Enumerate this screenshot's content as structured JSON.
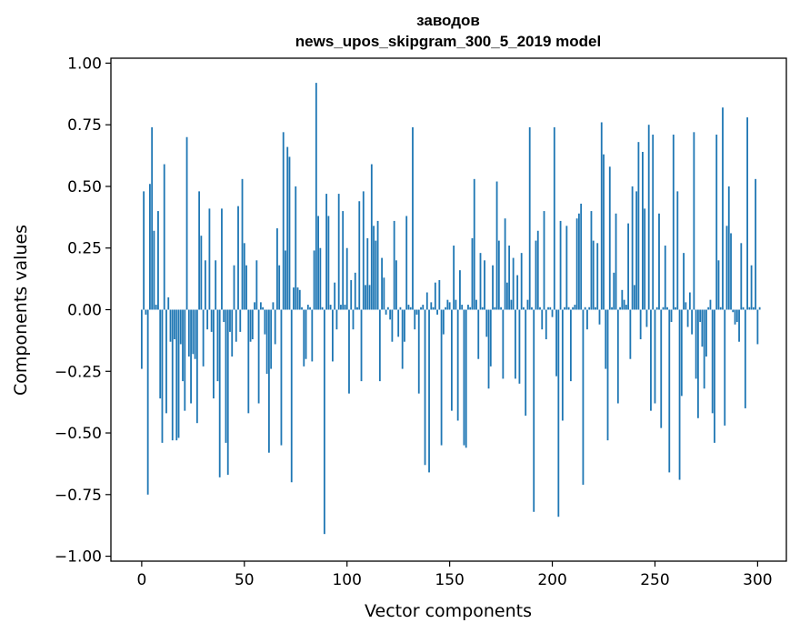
{
  "chart_data": {
    "type": "bar",
    "title_line1": "заводов",
    "title_line2": "news_upos_skipgram_300_5_2019 model",
    "xlabel": "Vector components",
    "ylabel": "Components values",
    "xlim": [
      -15,
      314
    ],
    "ylim": [
      -1.02,
      1.02
    ],
    "xticks": [
      0,
      50,
      100,
      150,
      200,
      250,
      300
    ],
    "xtick_labels": [
      "0",
      "50",
      "100",
      "150",
      "200",
      "250",
      "300"
    ],
    "yticks": [
      1.0,
      0.75,
      0.5,
      0.25,
      0.0,
      -0.25,
      -0.5,
      -0.75,
      -1.0
    ],
    "ytick_labels": [
      "1.00",
      "0.75",
      "0.50",
      "0.25",
      "0.00",
      "−0.25",
      "−0.50",
      "−0.75",
      "−1.00"
    ],
    "color": "#1f77b4",
    "values": [
      -0.24,
      0.48,
      -0.02,
      -0.75,
      0.51,
      0.74,
      0.32,
      0.02,
      0.4,
      -0.36,
      -0.54,
      0.59,
      -0.42,
      0.05,
      -0.13,
      -0.53,
      -0.12,
      -0.53,
      -0.52,
      -0.14,
      -0.29,
      -0.41,
      0.7,
      -0.19,
      -0.38,
      -0.18,
      -0.2,
      -0.46,
      0.48,
      0.3,
      -0.23,
      0.2,
      -0.08,
      0.41,
      -0.09,
      -0.36,
      0.2,
      -0.29,
      -0.68,
      0.41,
      -0.05,
      -0.54,
      -0.67,
      -0.09,
      -0.19,
      0.18,
      -0.13,
      0.42,
      -0.09,
      0.53,
      0.27,
      0.18,
      -0.42,
      -0.13,
      -0.12,
      0.03,
      0.2,
      -0.38,
      0.03,
      0.01,
      -0.1,
      -0.26,
      -0.58,
      -0.24,
      0.03,
      -0.14,
      0.33,
      0.18,
      -0.55,
      0.72,
      0.24,
      0.66,
      0.62,
      -0.7,
      0.09,
      0.5,
      0.09,
      0.08,
      0.01,
      -0.23,
      -0.2,
      0.02,
      0.01,
      -0.21,
      0.24,
      0.92,
      0.38,
      0.25,
      0.01,
      -0.91,
      0.47,
      0.38,
      0.02,
      -0.21,
      0.11,
      -0.08,
      0.47,
      0.02,
      0.4,
      0.02,
      0.25,
      -0.34,
      0.12,
      -0.08,
      0.15,
      0.01,
      0.44,
      -0.29,
      0.48,
      0.1,
      0.29,
      0.1,
      0.59,
      0.34,
      0.28,
      0.36,
      -0.29,
      0.21,
      0.13,
      -0.02,
      0.01,
      -0.04,
      -0.13,
      0.36,
      0.2,
      -0.11,
      0.01,
      -0.24,
      -0.13,
      0.38,
      0.02,
      0.01,
      0.74,
      -0.08,
      -0.02,
      -0.34,
      0.01,
      0.02,
      -0.63,
      0.07,
      -0.66,
      0.03,
      0.01,
      0.11,
      -0.02,
      0.12,
      -0.55,
      -0.1,
      0.01,
      0.04,
      0.03,
      -0.41,
      0.26,
      0.04,
      -0.45,
      0.16,
      0.02,
      -0.55,
      -0.56,
      0.02,
      0.01,
      0.29,
      0.53,
      0.04,
      -0.2,
      0.23,
      0.01,
      0.2,
      -0.11,
      -0.32,
      -0.23,
      0.18,
      0.01,
      0.52,
      0.28,
      0.01,
      -0.28,
      0.37,
      0.11,
      0.26,
      0.04,
      0.21,
      -0.28,
      0.14,
      -0.3,
      0.23,
      0.01,
      -0.43,
      0.04,
      0.74,
      0.01,
      -0.82,
      0.28,
      0.32,
      0.01,
      -0.08,
      0.4,
      -0.12,
      0.01,
      0.01,
      -0.03,
      0.74,
      -0.27,
      -0.84,
      0.36,
      -0.45,
      0.01,
      0.34,
      0.01,
      -0.29,
      0.01,
      0.02,
      0.37,
      0.39,
      0.43,
      -0.71,
      0.01,
      -0.08,
      0.01,
      0.4,
      0.28,
      0.01,
      0.27,
      -0.06,
      0.76,
      0.63,
      -0.24,
      -0.53,
      0.58,
      0.01,
      0.15,
      0.39,
      -0.38,
      0.01,
      0.08,
      0.04,
      0.02,
      0.35,
      -0.2,
      0.5,
      0.1,
      0.48,
      0.68,
      -0.12,
      0.64,
      0.41,
      -0.07,
      0.75,
      -0.41,
      0.71,
      -0.38,
      0.01,
      0.39,
      -0.48,
      0.01,
      0.26,
      0.01,
      -0.66,
      -0.05,
      0.71,
      0.01,
      0.48,
      -0.69,
      -0.35,
      0.23,
      0.03,
      -0.07,
      0.07,
      -0.1,
      0.72,
      -0.28,
      -0.44,
      -0.05,
      -0.15,
      -0.32,
      -0.19,
      0.01,
      0.04,
      -0.42,
      -0.54,
      0.71,
      0.2,
      0.01,
      0.82,
      -0.47,
      0.34,
      0.5,
      0.31,
      -0.01,
      -0.06,
      -0.05,
      -0.13,
      0.27,
      0.01,
      -0.4,
      0.78,
      0.01,
      0.18,
      0.01,
      0.53,
      -0.14,
      0.01
    ]
  }
}
